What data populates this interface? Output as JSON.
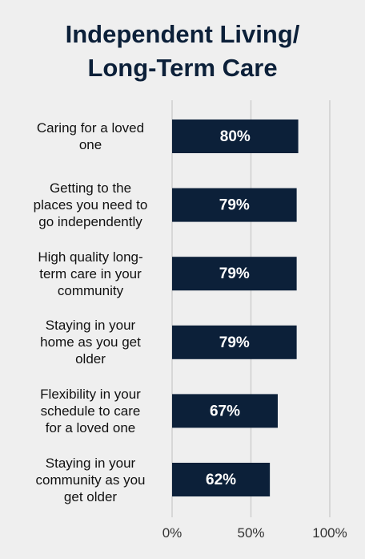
{
  "chart_data": {
    "type": "barh",
    "title": "Independent Living/ Long-Term Care",
    "categories": [
      "Caring for a loved\none",
      "Getting to the\nplaces you need to\ngo independently",
      "High quality long-\nterm care in your\ncommunity",
      "Staying in your\nhome as you get\nolder",
      "Flexibility in your\nschedule to care\nfor a loved one",
      "Staying in your\ncommunity as you\nget older"
    ],
    "values": [
      80,
      79,
      79,
      79,
      67,
      62
    ],
    "value_labels": [
      "80%",
      "79%",
      "79%",
      "79%",
      "67%",
      "62%"
    ],
    "color": "#0c2039",
    "xlim": [
      0,
      100
    ],
    "xticks": [
      {
        "value": 0,
        "label": "0%"
      },
      {
        "value": 50,
        "label": "50%"
      },
      {
        "value": 100,
        "label": "100%"
      }
    ],
    "grid": true
  }
}
